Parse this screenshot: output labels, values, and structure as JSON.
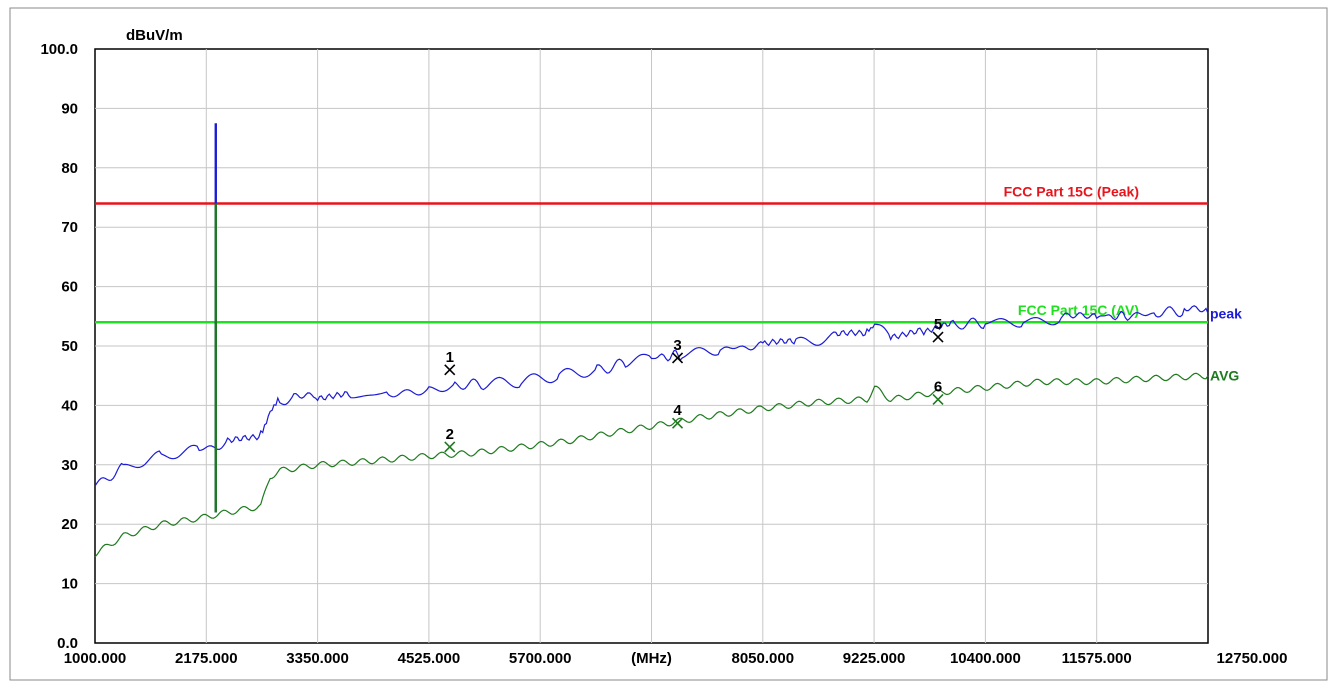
{
  "chart_data": {
    "type": "line",
    "ylabel": "dBuV/m",
    "xunit": "(MHz)",
    "xlim": [
      1000,
      12750
    ],
    "ylim": [
      0,
      100
    ],
    "grid": true,
    "x_ticks": [
      {
        "value": 1000,
        "label": "1000.000"
      },
      {
        "value": 2175,
        "label": "2175.000"
      },
      {
        "value": 3350,
        "label": "3350.000"
      },
      {
        "value": 4525,
        "label": "4525.000"
      },
      {
        "value": 5700,
        "label": "5700.000"
      },
      {
        "value": 6875,
        "label": "(MHz)"
      },
      {
        "value": 8050,
        "label": "8050.000"
      },
      {
        "value": 9225,
        "label": "9225.000"
      },
      {
        "value": 10400,
        "label": "10400.000"
      },
      {
        "value": 11575,
        "label": "11575.000"
      },
      {
        "value": 12750,
        "label": "12750.000"
      }
    ],
    "y_ticks": [
      {
        "value": 0,
        "label": "0.0"
      },
      {
        "value": 10,
        "label": "10"
      },
      {
        "value": 20,
        "label": "20"
      },
      {
        "value": 30,
        "label": "30"
      },
      {
        "value": 40,
        "label": "40"
      },
      {
        "value": 50,
        "label": "50"
      },
      {
        "value": 60,
        "label": "60"
      },
      {
        "value": 70,
        "label": "70"
      },
      {
        "value": 80,
        "label": "80"
      },
      {
        "value": 90,
        "label": "90"
      },
      {
        "value": 100,
        "label": "100.0"
      }
    ],
    "limits": [
      {
        "name": "FCC Part 15C (Peak)",
        "value": 74,
        "color": "#e8141c"
      },
      {
        "name": "FCC Part 15C (AV)",
        "value": 54,
        "color": "#1fe01f"
      }
    ],
    "series": [
      {
        "name": "peak",
        "color": "#1c1cd6",
        "x": [
          1000,
          1300,
          1700,
          2100,
          2400,
          2750,
          2850,
          2950,
          3100,
          3350,
          3700,
          4100,
          4525,
          4800,
          5100,
          5500,
          5900,
          6300,
          6600,
          6875,
          7200,
          7600,
          8050,
          8400,
          8800,
          9150,
          9230,
          9400,
          9750,
          10100,
          10400,
          10800,
          11200,
          11575,
          11900,
          12200,
          12500,
          12750
        ],
        "y": [
          26.5,
          29.5,
          31.5,
          32.5,
          33.5,
          35,
          39.5,
          40.5,
          41,
          41.5,
          41.5,
          42,
          43,
          43.5,
          43.5,
          44,
          45,
          46,
          47,
          48,
          48.5,
          49.5,
          50,
          50.5,
          51.5,
          52,
          54,
          52,
          52.5,
          53.5,
          54,
          54,
          54.5,
          55,
          55,
          55.5,
          56,
          55.5
        ]
      },
      {
        "name": "AVG",
        "color": "#1f7a1f",
        "x": [
          1000,
          1300,
          1700,
          2100,
          2400,
          2750,
          2850,
          2950,
          3350,
          3800,
          4525,
          5000,
          5500,
          6000,
          6500,
          6875,
          7400,
          8050,
          8600,
          9150,
          9230,
          9400,
          9800,
          10400,
          11000,
          11575,
          12100,
          12750
        ],
        "y": [
          15,
          18,
          20,
          21,
          22,
          23,
          28,
          29,
          30,
          30.5,
          31.5,
          32,
          33,
          34,
          35.5,
          36.5,
          38,
          39.5,
          40.5,
          41,
          43,
          41,
          42,
          43,
          44,
          44,
          44.5,
          45
        ]
      }
    ],
    "spikes": [
      {
        "x": 2275,
        "y_bottom": 22,
        "y_top": 87.5,
        "color": "#1c1cd6"
      },
      {
        "x": 2275,
        "y_bottom": 46,
        "y_top": 60,
        "color": "#1c1cd6"
      },
      {
        "x": 2275,
        "y_bottom": 22,
        "y_top": 74,
        "color": "#1f7a1f"
      }
    ],
    "markers": [
      {
        "label": "1",
        "x": 4745,
        "y": 46,
        "color": "#000000"
      },
      {
        "label": "2",
        "x": 4745,
        "y": 33,
        "color": "#1f7a1f"
      },
      {
        "label": "3",
        "x": 7150,
        "y": 48,
        "color": "#000000"
      },
      {
        "label": "4",
        "x": 7150,
        "y": 37,
        "color": "#1f7a1f"
      },
      {
        "label": "5",
        "x": 9900,
        "y": 51.5,
        "color": "#000000"
      },
      {
        "label": "6",
        "x": 9900,
        "y": 41,
        "color": "#1f7a1f"
      }
    ]
  }
}
